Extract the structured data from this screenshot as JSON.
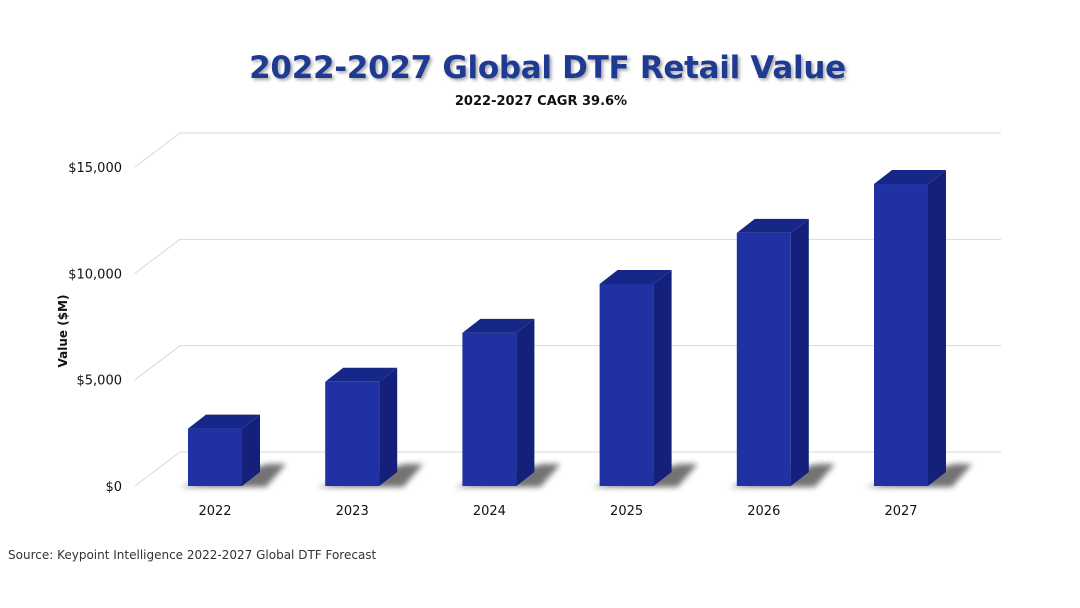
{
  "chart_data": {
    "type": "bar",
    "title": "2022-2027 Global DTF Retail Value",
    "subtitle": "2022-2027 CAGR 39.6%",
    "xlabel": "",
    "ylabel": "Value ($M)",
    "categories": [
      "2022",
      "2023",
      "2024",
      "2025",
      "2026",
      "2027"
    ],
    "values": [
      2700,
      4900,
      7200,
      9500,
      11900,
      14200
    ],
    "ylim": [
      0,
      15000
    ],
    "yticks": [
      0,
      5000,
      10000,
      15000
    ],
    "ytick_labels": [
      "$0",
      "$5,000",
      "$10,000",
      "$15,000"
    ],
    "grid": true,
    "legend": "none",
    "source": "Source: Keypoint Intelligence 2022-2027 Global DTF Forecast"
  },
  "colors": {
    "bar_front": "#1f31a3",
    "bar_side": "#15207a",
    "bar_top": "#162788",
    "title": "#1f3a93",
    "grid": "#d9d9d9"
  }
}
